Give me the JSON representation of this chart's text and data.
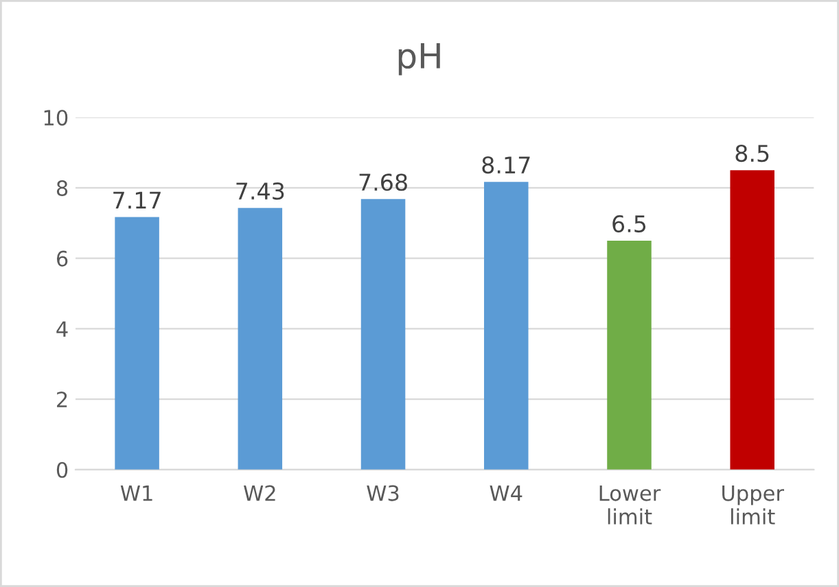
{
  "chart_data": {
    "type": "bar",
    "title": "pH",
    "categories": [
      "W1",
      "W2",
      "W3",
      "W4",
      "Lower limit",
      "Upper limit"
    ],
    "values": [
      7.17,
      7.43,
      7.68,
      8.17,
      6.5,
      8.5
    ],
    "colors": [
      "#5b9bd5",
      "#5b9bd5",
      "#5b9bd5",
      "#5b9bd5",
      "#70ad47",
      "#c00000"
    ],
    "ylim": [
      0,
      10
    ],
    "yticks": [
      0,
      2,
      4,
      6,
      8,
      10
    ],
    "grid": "y",
    "data_labels": true,
    "legend": false
  }
}
